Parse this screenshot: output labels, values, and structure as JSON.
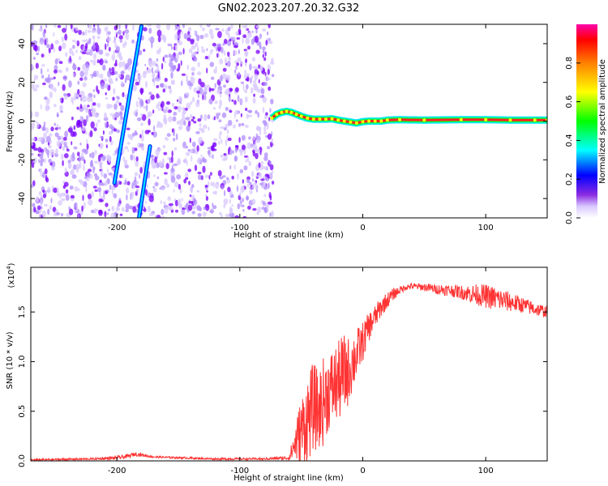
{
  "title": "GN02.2023.207.20.32.G32",
  "colors": {
    "snr_line": "#ff0000",
    "noise_point": "#7a00ff",
    "trace_outline": "#0033ff",
    "trace_fill": "#00e5ff"
  },
  "colorbar": {
    "label": "Normalized spectral amplitude",
    "ticks": [
      "0.0",
      "0.2",
      "0.4",
      "0.6",
      "0.8"
    ],
    "tick_values": [
      0.0,
      0.2,
      0.4,
      0.6,
      0.8
    ],
    "range": [
      0,
      1
    ],
    "colormap": "hsv-rainbow"
  },
  "chart_data": [
    {
      "type": "scatter",
      "xlabel": "Height of straight line (km)",
      "ylabel": "Frequency (Hz)",
      "xlim": [
        -270,
        150
      ],
      "ylim": [
        -50,
        50
      ],
      "xticks": [
        -200,
        -100,
        0,
        100
      ],
      "xtick_labels": [
        "-200",
        "-100",
        "0",
        "100"
      ],
      "yticks": [
        -40,
        -20,
        0,
        20,
        40
      ],
      "ytick_labels": [
        "-40",
        "-20",
        "0",
        "20",
        "40"
      ],
      "grid": false,
      "noise_region_x": [
        -270,
        -73
      ],
      "series": [
        {
          "points": [
            [
              -74,
              1.5
            ],
            [
              -70,
              3.5
            ],
            [
              -66,
              4.5
            ],
            [
              -62,
              5
            ],
            [
              -58,
              4.5
            ],
            [
              -54,
              3.5
            ],
            [
              -50,
              2.5
            ],
            [
              -45,
              1.5
            ],
            [
              -40,
              1
            ],
            [
              -35,
              1
            ],
            [
              -30,
              1
            ],
            [
              -25,
              1.2
            ],
            [
              -20,
              0.5
            ],
            [
              -15,
              0
            ],
            [
              -10,
              -0.5
            ],
            [
              -5,
              -1
            ],
            [
              0,
              -0.3
            ],
            [
              5,
              0
            ],
            [
              10,
              0
            ],
            [
              15,
              0
            ],
            [
              20,
              0.5
            ],
            [
              30,
              0.7
            ],
            [
              50,
              0.5
            ],
            [
              80,
              0.7
            ],
            [
              100,
              0.7
            ],
            [
              120,
              0.5
            ],
            [
              140,
              0.5
            ],
            [
              150,
              0.5
            ]
          ],
          "amplitude": 0.9
        },
        {
          "segments": [
            [
              [
                -202,
                -32
              ],
              [
                -180,
                49
              ]
            ],
            [
              [
                -182,
                -50
              ],
              [
                -173,
                -13
              ]
            ]
          ],
          "amplitude": 0.35
        }
      ]
    },
    {
      "type": "line",
      "xlabel": "Height of straight line (km)",
      "ylabel": "SNR (10 * v/v)",
      "multiplier_label": "(x10",
      "multiplier_exp": "4",
      "multiplier_close": ")",
      "xlim": [
        -270,
        150
      ],
      "ylim": [
        0,
        1.95
      ],
      "xticks": [
        -200,
        -100,
        0,
        100
      ],
      "xtick_labels": [
        "-200",
        "-100",
        "0",
        "100"
      ],
      "yticks": [
        0.0,
        0.5,
        1.0,
        1.5
      ],
      "ytick_labels": [
        "0.0",
        "0.5",
        "1.0",
        "1.5"
      ],
      "grid": false,
      "series": [
        {
          "x": [
            -270,
            -220,
            -200,
            -190,
            -185,
            -170,
            -120,
            -80,
            -60,
            -56,
            -52,
            -48,
            -44,
            -40,
            -36,
            -32,
            -28,
            -24,
            -20,
            -16,
            -12,
            -8,
            -4,
            0,
            5,
            10,
            15,
            20,
            25,
            30,
            35,
            40,
            50,
            60,
            70,
            80,
            90,
            100,
            110,
            120,
            130,
            140,
            150
          ],
          "y": [
            0.01,
            0.02,
            0.03,
            0.05,
            0.07,
            0.04,
            0.02,
            0.02,
            0.03,
            0.15,
            0.25,
            0.35,
            0.45,
            0.55,
            0.5,
            0.6,
            0.7,
            0.75,
            0.8,
            0.85,
            0.9,
            1.0,
            1.1,
            1.2,
            1.35,
            1.45,
            1.55,
            1.62,
            1.68,
            1.72,
            1.75,
            1.76,
            1.75,
            1.73,
            1.72,
            1.7,
            1.68,
            1.66,
            1.63,
            1.6,
            1.57,
            1.53,
            1.5
          ],
          "noise_amplitude": [
            0.01,
            0.01,
            0.02,
            0.02,
            0.02,
            0.01,
            0.01,
            0.01,
            0.02,
            0.15,
            0.3,
            0.4,
            0.45,
            0.45,
            0.4,
            0.45,
            0.4,
            0.4,
            0.4,
            0.45,
            0.35,
            0.3,
            0.25,
            0.2,
            0.15,
            0.12,
            0.1,
            0.08,
            0.06,
            0.04,
            0.03,
            0.03,
            0.04,
            0.05,
            0.06,
            0.07,
            0.1,
            0.12,
            0.12,
            0.1,
            0.08,
            0.07,
            0.06
          ]
        }
      ]
    }
  ]
}
